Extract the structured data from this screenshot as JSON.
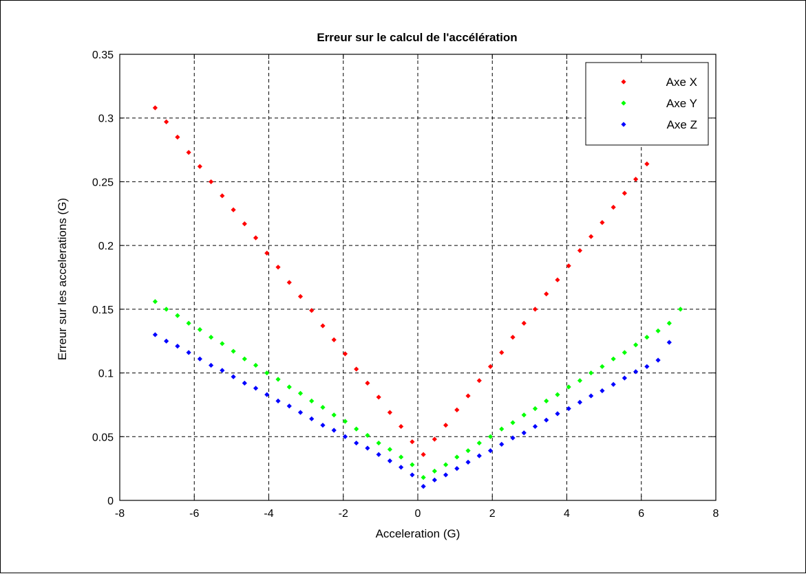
{
  "chart_data": {
    "type": "scatter",
    "title": "Erreur sur le calcul de l'accélération",
    "xlabel": "Acceleration (G)",
    "ylabel": "Erreur sur les accelerations (G)",
    "xlim": [
      -8,
      8
    ],
    "ylim": [
      0,
      0.35
    ],
    "xticks": [
      -8,
      -6,
      -4,
      -2,
      0,
      2,
      4,
      6,
      8
    ],
    "xtick_labels": [
      "-8",
      "-6",
      "-4",
      "-2",
      "0",
      "2",
      "4",
      "6",
      "8"
    ],
    "yticks": [
      0,
      0.05,
      0.1,
      0.15,
      0.2,
      0.25,
      0.3,
      0.35
    ],
    "ytick_labels": [
      "0",
      "0.05",
      "0.1",
      "0.15",
      "0.2",
      "0.25",
      "0.3",
      "0.35"
    ],
    "grid": true,
    "legend": "top-right",
    "series": [
      {
        "name": "Axe X",
        "color": "#ff0000",
        "x": [
          -7.05,
          -6.75,
          -6.45,
          -6.15,
          -5.85,
          -5.55,
          -5.25,
          -4.95,
          -4.65,
          -4.35,
          -4.05,
          -3.75,
          -3.45,
          -3.15,
          -2.85,
          -2.55,
          -2.25,
          -1.95,
          -1.65,
          -1.35,
          -1.05,
          -0.75,
          -0.45,
          -0.15,
          0.15,
          0.45,
          0.75,
          1.05,
          1.35,
          1.65,
          1.95,
          2.25,
          2.55,
          2.85,
          3.15,
          3.45,
          3.75,
          4.05,
          4.35,
          4.65,
          4.95,
          5.25,
          5.55,
          5.85,
          6.15
        ],
        "y": [
          0.308,
          0.297,
          0.285,
          0.273,
          0.262,
          0.25,
          0.239,
          0.228,
          0.217,
          0.206,
          0.194,
          0.183,
          0.171,
          0.16,
          0.149,
          0.137,
          0.126,
          0.115,
          0.103,
          0.092,
          0.081,
          0.069,
          0.058,
          0.046,
          0.036,
          0.048,
          0.059,
          0.071,
          0.082,
          0.094,
          0.105,
          0.116,
          0.128,
          0.139,
          0.15,
          0.162,
          0.173,
          0.184,
          0.196,
          0.207,
          0.218,
          0.23,
          0.241,
          0.252,
          0.264
        ]
      },
      {
        "name": "Axe Y",
        "color": "#00ff00",
        "x": [
          -7.05,
          -6.75,
          -6.45,
          -6.15,
          -5.85,
          -5.55,
          -5.25,
          -4.95,
          -4.65,
          -4.35,
          -4.05,
          -3.75,
          -3.45,
          -3.15,
          -2.85,
          -2.55,
          -2.25,
          -1.95,
          -1.65,
          -1.35,
          -1.05,
          -0.75,
          -0.45,
          -0.15,
          0.15,
          0.45,
          0.75,
          1.05,
          1.35,
          1.65,
          1.95,
          2.25,
          2.55,
          2.85,
          3.15,
          3.45,
          3.75,
          4.05,
          4.35,
          4.65,
          4.95,
          5.25,
          5.55,
          5.85,
          6.15,
          6.45,
          6.75,
          7.05
        ],
        "y": [
          0.156,
          0.15,
          0.145,
          0.139,
          0.134,
          0.128,
          0.123,
          0.117,
          0.111,
          0.106,
          0.1,
          0.095,
          0.089,
          0.084,
          0.078,
          0.073,
          0.067,
          0.062,
          0.056,
          0.051,
          0.045,
          0.04,
          0.034,
          0.028,
          0.018,
          0.023,
          0.028,
          0.034,
          0.039,
          0.045,
          0.05,
          0.056,
          0.061,
          0.067,
          0.072,
          0.078,
          0.083,
          0.089,
          0.094,
          0.1,
          0.105,
          0.111,
          0.116,
          0.122,
          0.128,
          0.133,
          0.139,
          0.15
        ]
      },
      {
        "name": "Axe Z",
        "color": "#0000ff",
        "x": [
          -7.05,
          -6.75,
          -6.45,
          -6.15,
          -5.85,
          -5.55,
          -5.25,
          -4.95,
          -4.65,
          -4.35,
          -4.05,
          -3.75,
          -3.45,
          -3.15,
          -2.85,
          -2.55,
          -2.25,
          -1.95,
          -1.65,
          -1.35,
          -1.05,
          -0.75,
          -0.45,
          -0.15,
          0.15,
          0.45,
          0.75,
          1.05,
          1.35,
          1.65,
          1.95,
          2.25,
          2.55,
          2.85,
          3.15,
          3.45,
          3.75,
          4.05,
          4.35,
          4.65,
          4.95,
          5.25,
          5.55,
          5.85,
          6.15,
          6.45,
          6.75
        ],
        "y": [
          0.13,
          0.125,
          0.121,
          0.116,
          0.111,
          0.106,
          0.102,
          0.097,
          0.092,
          0.088,
          0.083,
          0.078,
          0.074,
          0.069,
          0.064,
          0.059,
          0.055,
          0.05,
          0.045,
          0.041,
          0.036,
          0.031,
          0.026,
          0.02,
          0.011,
          0.016,
          0.02,
          0.025,
          0.03,
          0.035,
          0.039,
          0.044,
          0.049,
          0.053,
          0.058,
          0.063,
          0.068,
          0.072,
          0.077,
          0.082,
          0.086,
          0.091,
          0.096,
          0.101,
          0.105,
          0.11,
          0.124
        ]
      }
    ]
  }
}
